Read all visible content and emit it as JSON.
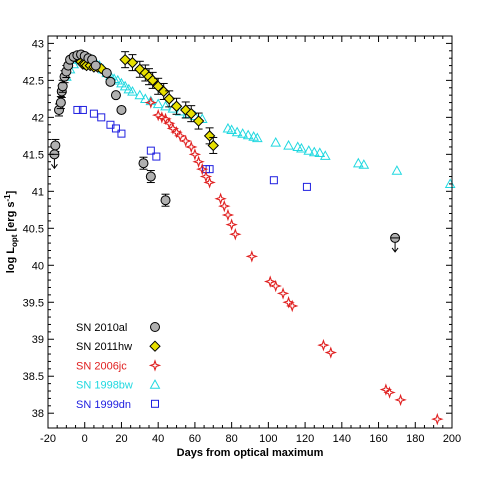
{
  "chart_data": {
    "type": "scatter",
    "xlabel": "Days from optical maximum",
    "ylabel_main": "log L",
    "ylabel_sub": "opt",
    "ylabel_unit": "[erg s",
    "ylabel_unit_sup": "-1",
    "ylabel_unit_close": "]",
    "xlim": [
      -20,
      200
    ],
    "ylim": [
      37.8,
      43.1
    ],
    "xticks": [
      -20,
      0,
      20,
      40,
      60,
      80,
      100,
      120,
      140,
      160,
      180,
      200
    ],
    "xtick_labels": [
      "-20",
      "0",
      "20",
      "40",
      "60",
      "80",
      "100",
      "120",
      "140",
      "160",
      "180",
      "200"
    ],
    "yticks": [
      38,
      38.5,
      39,
      39.5,
      40,
      40.5,
      41,
      41.5,
      42,
      42.5,
      43
    ],
    "ytick_labels": [
      "38",
      "38.5",
      "39",
      "39.5",
      "40",
      "40.5",
      "41",
      "41.5",
      "42",
      "42.5",
      "43"
    ],
    "legend_position": "bottom-left",
    "series": [
      {
        "name": "SN 2010al",
        "marker": "circle",
        "color": "#000000",
        "fill": "#b0b0b0",
        "points": [
          {
            "x": -16,
            "y": 41.62
          },
          {
            "x": -16.5,
            "y": 41.5,
            "upper_limit": true
          },
          {
            "x": -14,
            "y": 42.1
          },
          {
            "x": -13,
            "y": 42.2
          },
          {
            "x": -12.5,
            "y": 42.35
          },
          {
            "x": -12,
            "y": 42.42
          },
          {
            "x": -11,
            "y": 42.55
          },
          {
            "x": -10,
            "y": 42.62
          },
          {
            "x": -9,
            "y": 42.7
          },
          {
            "x": -8,
            "y": 42.78
          },
          {
            "x": -6,
            "y": 42.82
          },
          {
            "x": -4,
            "y": 42.84
          },
          {
            "x": -2,
            "y": 42.85
          },
          {
            "x": 0,
            "y": 42.83
          },
          {
            "x": 2,
            "y": 42.8
          },
          {
            "x": 4,
            "y": 42.78
          },
          {
            "x": 6,
            "y": 42.7
          },
          {
            "x": 12,
            "y": 42.6
          },
          {
            "x": 14,
            "y": 42.48
          },
          {
            "x": 17,
            "y": 42.3
          },
          {
            "x": 20,
            "y": 42.1
          },
          {
            "x": 32,
            "y": 41.38
          },
          {
            "x": 36,
            "y": 41.2
          },
          {
            "x": 44,
            "y": 40.88
          },
          {
            "x": 169,
            "y": 40.37,
            "upper_limit": true
          }
        ]
      },
      {
        "name": "SN 2011hw",
        "marker": "diamond",
        "color": "#000000",
        "fill": "#e8e000",
        "points": [
          {
            "x": -5,
            "y": 42.82
          },
          {
            "x": -4,
            "y": 42.8
          },
          {
            "x": -3,
            "y": 42.78
          },
          {
            "x": -2,
            "y": 42.75
          },
          {
            "x": -1,
            "y": 42.72
          },
          {
            "x": 0,
            "y": 42.72
          },
          {
            "x": 1,
            "y": 42.7
          },
          {
            "x": 3,
            "y": 42.7
          },
          {
            "x": 5,
            "y": 42.68
          },
          {
            "x": 7,
            "y": 42.68
          },
          {
            "x": 9,
            "y": 42.66
          },
          {
            "x": 22,
            "y": 42.78
          },
          {
            "x": 26,
            "y": 42.74
          },
          {
            "x": 30,
            "y": 42.65
          },
          {
            "x": 33,
            "y": 42.6
          },
          {
            "x": 35,
            "y": 42.55
          },
          {
            "x": 37,
            "y": 42.5
          },
          {
            "x": 40,
            "y": 42.42
          },
          {
            "x": 43,
            "y": 42.35
          },
          {
            "x": 46,
            "y": 42.25
          },
          {
            "x": 50,
            "y": 42.15
          },
          {
            "x": 55,
            "y": 42.1
          },
          {
            "x": 58,
            "y": 42.05
          },
          {
            "x": 62,
            "y": 41.95
          },
          {
            "x": 68,
            "y": 41.75
          },
          {
            "x": 70,
            "y": 41.62
          }
        ]
      },
      {
        "name": "SN 2006jc",
        "marker": "star",
        "color": "#e02020",
        "fill": "none",
        "points": [
          {
            "x": 36,
            "y": 42.2
          },
          {
            "x": 40,
            "y": 42.03
          },
          {
            "x": 42,
            "y": 42.0
          },
          {
            "x": 44,
            "y": 41.98
          },
          {
            "x": 46,
            "y": 41.92
          },
          {
            "x": 48,
            "y": 41.85
          },
          {
            "x": 50,
            "y": 41.8
          },
          {
            "x": 52,
            "y": 41.75
          },
          {
            "x": 55,
            "y": 41.68
          },
          {
            "x": 58,
            "y": 41.6
          },
          {
            "x": 60,
            "y": 41.5
          },
          {
            "x": 62,
            "y": 41.4
          },
          {
            "x": 64,
            "y": 41.3
          },
          {
            "x": 66,
            "y": 41.2
          },
          {
            "x": 68,
            "y": 41.12
          },
          {
            "x": 74,
            "y": 40.9
          },
          {
            "x": 76,
            "y": 40.8
          },
          {
            "x": 78,
            "y": 40.68
          },
          {
            "x": 80,
            "y": 40.55
          },
          {
            "x": 82,
            "y": 40.42
          },
          {
            "x": 91,
            "y": 40.12
          },
          {
            "x": 101,
            "y": 39.78
          },
          {
            "x": 104,
            "y": 39.72
          },
          {
            "x": 108,
            "y": 39.62
          },
          {
            "x": 111,
            "y": 39.5
          },
          {
            "x": 113,
            "y": 39.45
          },
          {
            "x": 130,
            "y": 38.92
          },
          {
            "x": 134,
            "y": 38.82
          },
          {
            "x": 164,
            "y": 38.32
          },
          {
            "x": 166,
            "y": 38.28
          },
          {
            "x": 172,
            "y": 38.18
          },
          {
            "x": 192,
            "y": 37.92
          }
        ]
      },
      {
        "name": "SN 1998bw",
        "marker": "triangle",
        "color": "#20d8e0",
        "fill": "none",
        "points": [
          {
            "x": -10,
            "y": 42.55
          },
          {
            "x": -8,
            "y": 42.65
          },
          {
            "x": -6,
            "y": 42.72
          },
          {
            "x": -4,
            "y": 42.78
          },
          {
            "x": -2,
            "y": 42.82
          },
          {
            "x": 0,
            "y": 42.82
          },
          {
            "x": 2,
            "y": 42.8
          },
          {
            "x": 4,
            "y": 42.78
          },
          {
            "x": 6,
            "y": 42.74
          },
          {
            "x": 8,
            "y": 42.7
          },
          {
            "x": 10,
            "y": 42.65
          },
          {
            "x": 12,
            "y": 42.6
          },
          {
            "x": 14,
            "y": 42.56
          },
          {
            "x": 16,
            "y": 42.52
          },
          {
            "x": 18,
            "y": 42.5
          },
          {
            "x": 20,
            "y": 42.46
          },
          {
            "x": 22,
            "y": 42.42
          },
          {
            "x": 24,
            "y": 42.38
          },
          {
            "x": 26,
            "y": 42.35
          },
          {
            "x": 30,
            "y": 42.3
          },
          {
            "x": 33,
            "y": 42.25
          },
          {
            "x": 36,
            "y": 42.22
          },
          {
            "x": 40,
            "y": 42.18
          },
          {
            "x": 44,
            "y": 42.15
          },
          {
            "x": 48,
            "y": 42.12
          },
          {
            "x": 52,
            "y": 42.08
          },
          {
            "x": 56,
            "y": 42.05
          },
          {
            "x": 60,
            "y": 42.02
          },
          {
            "x": 64,
            "y": 41.98
          },
          {
            "x": 78,
            "y": 41.85
          },
          {
            "x": 80,
            "y": 41.83
          },
          {
            "x": 83,
            "y": 41.8
          },
          {
            "x": 86,
            "y": 41.78
          },
          {
            "x": 89,
            "y": 41.76
          },
          {
            "x": 92,
            "y": 41.74
          },
          {
            "x": 94,
            "y": 41.72
          },
          {
            "x": 104,
            "y": 41.66
          },
          {
            "x": 111,
            "y": 41.62
          },
          {
            "x": 116,
            "y": 41.6
          },
          {
            "x": 118,
            "y": 41.58
          },
          {
            "x": 122,
            "y": 41.55
          },
          {
            "x": 125,
            "y": 41.53
          },
          {
            "x": 128,
            "y": 41.52
          },
          {
            "x": 131,
            "y": 41.48
          },
          {
            "x": 149,
            "y": 41.38
          },
          {
            "x": 152,
            "y": 41.36
          },
          {
            "x": 170,
            "y": 41.28
          },
          {
            "x": 199,
            "y": 41.1
          }
        ]
      },
      {
        "name": "SN 1999dn",
        "marker": "square",
        "color": "#2020e0",
        "fill": "none",
        "points": [
          {
            "x": -4,
            "y": 42.1
          },
          {
            "x": -1,
            "y": 42.1
          },
          {
            "x": 5,
            "y": 42.05
          },
          {
            "x": 9,
            "y": 42.0
          },
          {
            "x": 14,
            "y": 41.9
          },
          {
            "x": 17,
            "y": 41.85
          },
          {
            "x": 20,
            "y": 41.78
          },
          {
            "x": 36,
            "y": 41.55
          },
          {
            "x": 39,
            "y": 41.47
          },
          {
            "x": 66,
            "y": 41.3
          },
          {
            "x": 68,
            "y": 41.3
          },
          {
            "x": 103,
            "y": 41.15
          },
          {
            "x": 121,
            "y": 41.06
          }
        ]
      }
    ]
  },
  "legend": {
    "items": [
      {
        "label": "SN 2010al",
        "color": "#000000"
      },
      {
        "label": "SN 2011hw",
        "color": "#000000"
      },
      {
        "label": "SN 2006jc",
        "color": "#e02020"
      },
      {
        "label": "SN 1998bw",
        "color": "#20d8e0"
      },
      {
        "label": "SN 1999dn",
        "color": "#2020e0"
      }
    ]
  }
}
